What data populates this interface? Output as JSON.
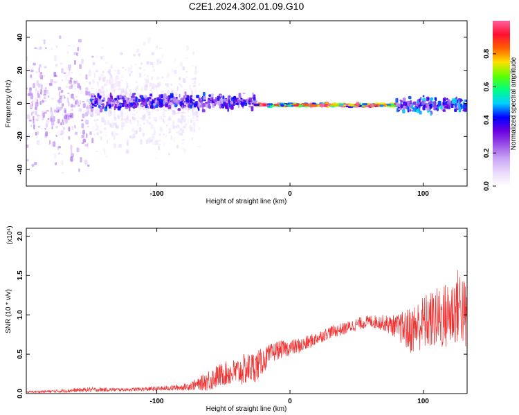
{
  "figure": {
    "title": "C2E1.2024.302.01.09.G10"
  },
  "colors": {
    "snr_line": "#ee3333",
    "colorbar": [
      "#ffffff",
      "#e9d9fb",
      "#c9a6f5",
      "#9b51e9",
      "#6a00e0",
      "#0000ff",
      "#00d0ff",
      "#00ff80",
      "#60ff00",
      "#ffe000",
      "#ff6000",
      "#ff1030",
      "#ff60a0"
    ]
  },
  "chart_data": [
    {
      "type": "heatmap",
      "xlabel": "Height of straight line (km)",
      "ylabel": "Frequency (Hz)",
      "xlim": [
        -198,
        133
      ],
      "ylim": [
        -50,
        50
      ],
      "xticks": [
        -100,
        0,
        100
      ],
      "xtick_labels": [
        "-100",
        "0",
        "100"
      ],
      "yticks": [
        -40,
        -20,
        0,
        20,
        40
      ],
      "ytick_labels": [
        "-40",
        "-20",
        "0",
        "20",
        "40"
      ],
      "colorbar": {
        "label": "Normalized spectral amplitude",
        "range": [
          0,
          1
        ],
        "ticks": [
          0.0,
          0.2,
          0.4,
          0.6,
          0.8
        ],
        "tick_labels": [
          "0.0",
          "0.2",
          "0.4",
          "0.6",
          "0.8"
        ]
      },
      "regions": [
        {
          "x_range": [
            -198,
            -147
          ],
          "freq_center": 0,
          "freq_halfwidth": 50,
          "amplitude": 0.15
        },
        {
          "x_range": [
            -147,
            -68
          ],
          "freq_center": 0,
          "freq_halfwidth": 45,
          "amplitude": 0.05
        },
        {
          "x_range": [
            -150,
            -25
          ],
          "freq_center": 1,
          "freq_halfwidth": 6,
          "amplitude": 0.35
        },
        {
          "x_range": [
            -25,
            80
          ],
          "freq_center": -1,
          "freq_halfwidth": 1.5,
          "amplitude": 0.9
        },
        {
          "x_range": [
            80,
            133
          ],
          "freq_center": -1,
          "freq_halfwidth": 6,
          "amplitude": 0.4
        }
      ]
    },
    {
      "type": "line",
      "xlabel": "Height of straight line (km)",
      "ylabel": "SNR (10 * v/v)",
      "y_multiplier": "(x10⁴)",
      "xlim": [
        -198,
        133
      ],
      "ylim": [
        0,
        2.1
      ],
      "xticks": [
        -100,
        0,
        100
      ],
      "xtick_labels": [
        "-100",
        "0",
        "100"
      ],
      "yticks": [
        0.0,
        0.5,
        1.0,
        1.5,
        2.0
      ],
      "ytick_labels": [
        "0.0",
        "0.5",
        "1.0",
        "1.5",
        "2.0"
      ],
      "series": [
        {
          "x": [
            -198,
            -175,
            -150,
            -125,
            -100,
            -80,
            -68,
            -60,
            -50,
            -40,
            -35,
            -25,
            -18,
            -10,
            0,
            10,
            20,
            30,
            40,
            50,
            60,
            70,
            80,
            90,
            100,
            110,
            120,
            128,
            133
          ],
          "y": [
            0.02,
            0.03,
            0.05,
            0.05,
            0.06,
            0.08,
            0.12,
            0.18,
            0.25,
            0.27,
            0.3,
            0.35,
            0.45,
            0.55,
            0.58,
            0.62,
            0.7,
            0.78,
            0.82,
            0.88,
            0.92,
            0.9,
            0.85,
            0.8,
            0.9,
            0.95,
            1.0,
            1.15,
            0.9
          ],
          "spread": [
            0.01,
            0.02,
            0.03,
            0.02,
            0.03,
            0.04,
            0.08,
            0.15,
            0.15,
            0.18,
            0.2,
            0.2,
            0.15,
            0.12,
            0.1,
            0.1,
            0.08,
            0.08,
            0.08,
            0.08,
            0.08,
            0.1,
            0.15,
            0.3,
            0.35,
            0.4,
            0.45,
            0.5,
            0.45
          ]
        }
      ]
    }
  ]
}
